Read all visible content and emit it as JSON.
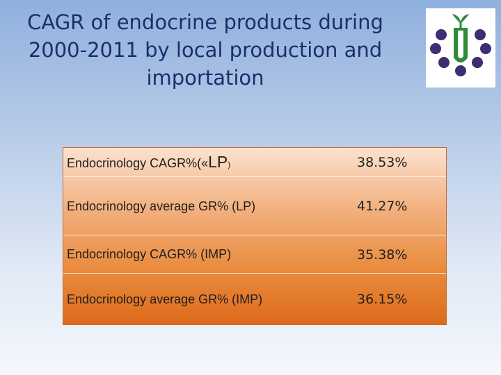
{
  "slide": {
    "title_lines": [
      "CAGR of endocrine products during",
      "2000-2011 by local production and",
      "importation"
    ]
  },
  "logo": {
    "icon": "pharma-logo-icon",
    "colors": {
      "dots": "#3e2d72",
      "plant": "#2f8a3a"
    }
  },
  "table": {
    "rows": [
      {
        "label_prefix": "Endocrinology CAGR%(«",
        "label_mid": "LP",
        "label_suffix": ")",
        "value": "38.53%"
      },
      {
        "label": "Endocrinology average GR% (LP)",
        "value": "41.27%"
      },
      {
        "label": "Endocrinology CAGR% (IMP)",
        "value": "35.38%"
      },
      {
        "label": "Endocrinology average GR% (IMP)",
        "value": "36.15%"
      }
    ]
  },
  "colors": {
    "title": "#1f2c6b",
    "table_top": "#fbe2cf",
    "table_bottom": "#dc6b1a"
  }
}
